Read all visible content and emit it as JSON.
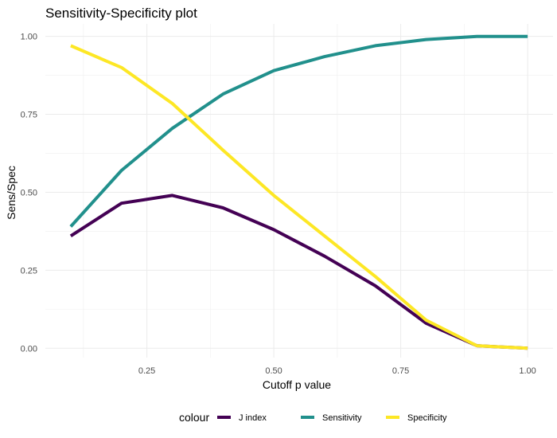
{
  "chart_data": {
    "type": "line",
    "title": "Sensitivity-Specificity plot",
    "xlabel": "Cutoff p value",
    "ylabel": "Sens/Spec",
    "xlim": [
      0.05,
      1.05
    ],
    "ylim": [
      -0.03,
      1.04
    ],
    "x_ticks": [
      0.25,
      0.5,
      0.75,
      1.0
    ],
    "x_tick_labels": [
      "0.25",
      "0.50",
      "0.75",
      "1.00"
    ],
    "y_ticks": [
      0.0,
      0.25,
      0.5,
      0.75,
      1.0
    ],
    "y_tick_labels": [
      "0.00",
      "0.25",
      "0.50",
      "0.75",
      "1.00"
    ],
    "grid": true,
    "legend_position": "bottom",
    "legend_title": "colour",
    "series": [
      {
        "name": "J index",
        "color": "#440154",
        "x": [
          0.1,
          0.2,
          0.3,
          0.4,
          0.5,
          0.6,
          0.7,
          0.8,
          0.9,
          1.0
        ],
        "y": [
          0.36,
          0.465,
          0.49,
          0.45,
          0.38,
          0.295,
          0.2,
          0.08,
          0.008,
          0.0
        ]
      },
      {
        "name": "Sensitivity",
        "color": "#21908C",
        "x": [
          0.1,
          0.2,
          0.3,
          0.4,
          0.5,
          0.6,
          0.7,
          0.8,
          0.9,
          1.0
        ],
        "y": [
          0.39,
          0.57,
          0.705,
          0.815,
          0.89,
          0.935,
          0.97,
          0.99,
          1.0,
          1.0
        ]
      },
      {
        "name": "Specificity",
        "color": "#FDE725",
        "x": [
          0.1,
          0.2,
          0.3,
          0.4,
          0.5,
          0.6,
          0.7,
          0.8,
          0.9,
          1.0
        ],
        "y": [
          0.97,
          0.9,
          0.785,
          0.635,
          0.49,
          0.36,
          0.23,
          0.09,
          0.008,
          0.0
        ]
      }
    ]
  }
}
